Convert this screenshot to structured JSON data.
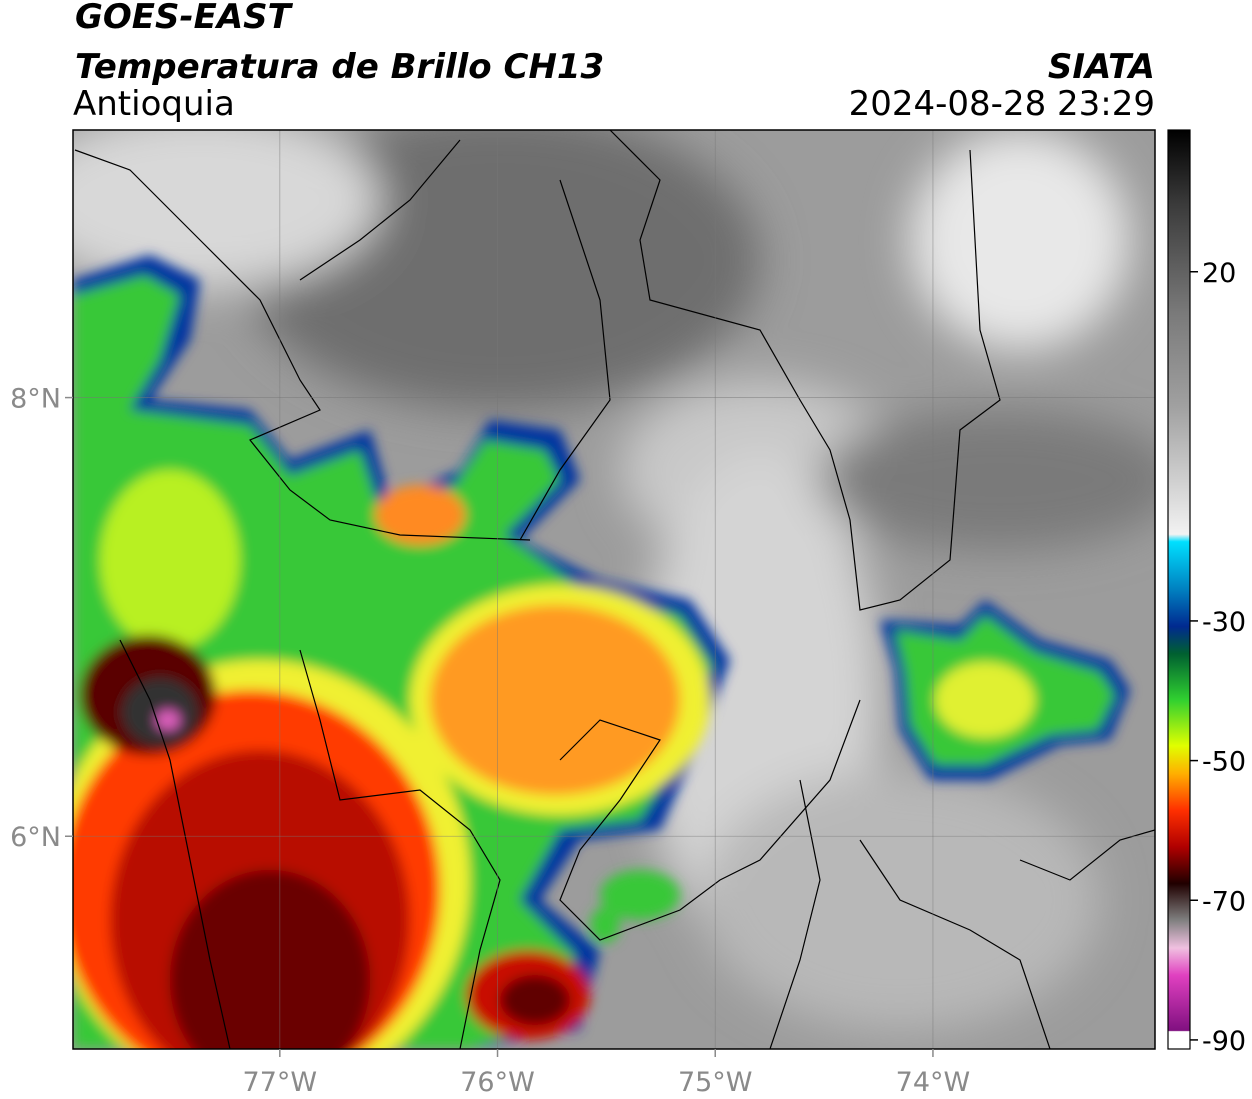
{
  "header": {
    "title": "GOES-EAST",
    "subtitle": "Temperatura de Brillo CH13",
    "region": "Antioquia",
    "source": "SIATA",
    "datetime": "2024-08-28 23:29"
  },
  "map": {
    "xlim": [
      -77.95,
      -72.98
    ],
    "ylim": [
      5.03,
      9.22
    ],
    "xticks": [
      {
        "value": -77,
        "label": "77°W"
      },
      {
        "value": -76,
        "label": "76°W"
      },
      {
        "value": -75,
        "label": "75°W"
      },
      {
        "value": -74,
        "label": "74°W"
      }
    ],
    "yticks": [
      {
        "value": 6,
        "label": "6°N"
      },
      {
        "value": 8,
        "label": "8°N"
      }
    ],
    "grid": true
  },
  "colorbar": {
    "lim": [
      -91.3,
      40.3
    ],
    "ticks": [
      20,
      -30,
      -50,
      -70,
      -90
    ]
  }
}
